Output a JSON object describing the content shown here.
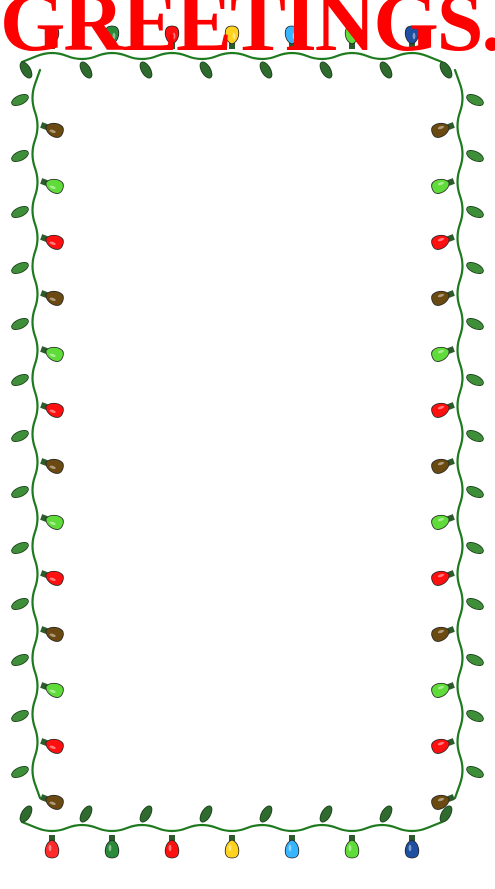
{
  "title": {
    "text": "GREETINGS.",
    "color": "#ff0000"
  },
  "border": {
    "icon": "christmas-lights-border-icon",
    "wire_color": "#1e7a1e",
    "leaf_colors": [
      "#2f6b2f",
      "#3f8f3a"
    ],
    "bulb_colors": [
      "#ff1010",
      "#ffd21f",
      "#37b6ff",
      "#5fdc3a",
      "#1e4fa0",
      "#6b1a12",
      "#6b4a12",
      "#ff2a2a",
      "#2a8a3a"
    ]
  }
}
